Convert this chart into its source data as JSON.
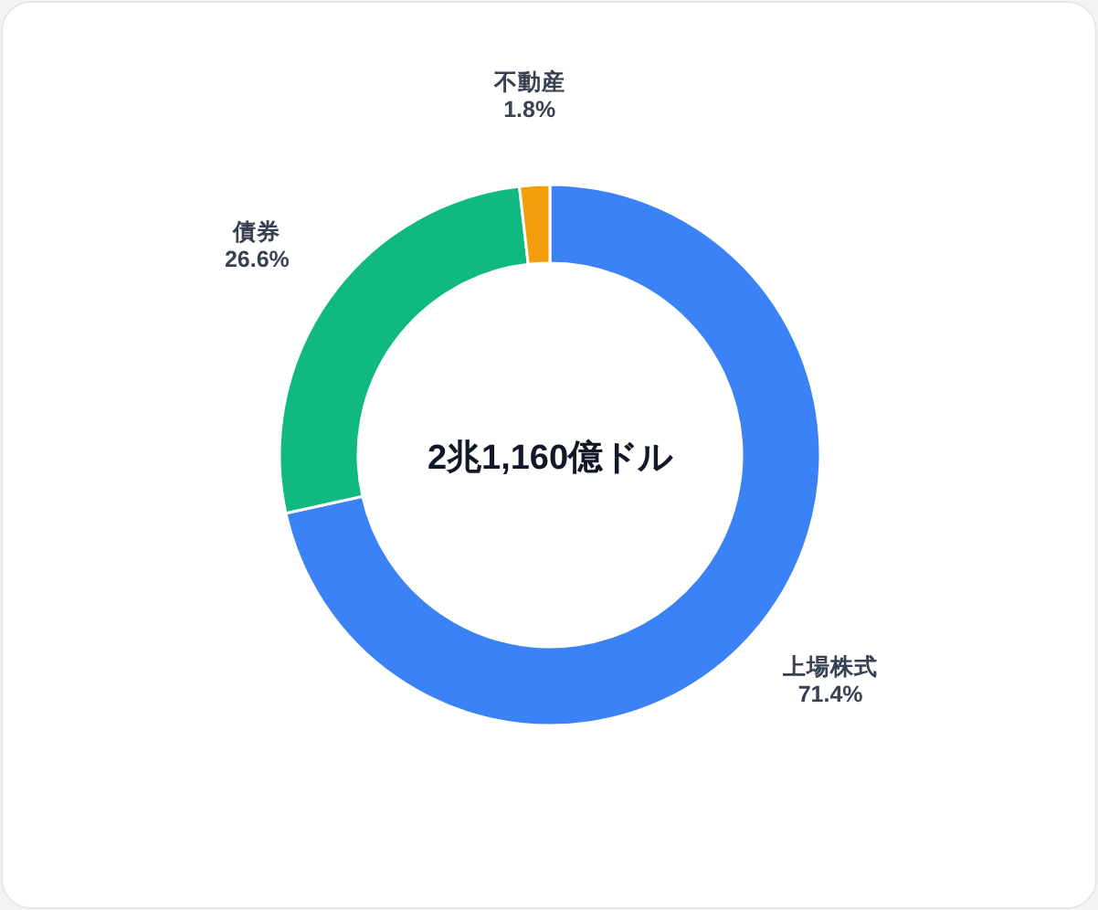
{
  "chart_data": {
    "type": "donut",
    "categories": [
      "上場株式",
      "債券",
      "不動産"
    ],
    "values": [
      71.4,
      26.6,
      1.8
    ],
    "colors": [
      "#3b82f6",
      "#10b981",
      "#f59e0b"
    ],
    "value_labels": [
      "71.4%",
      "26.6%",
      "1.8%"
    ],
    "annotations": [
      "2兆1,160億ドル"
    ]
  }
}
